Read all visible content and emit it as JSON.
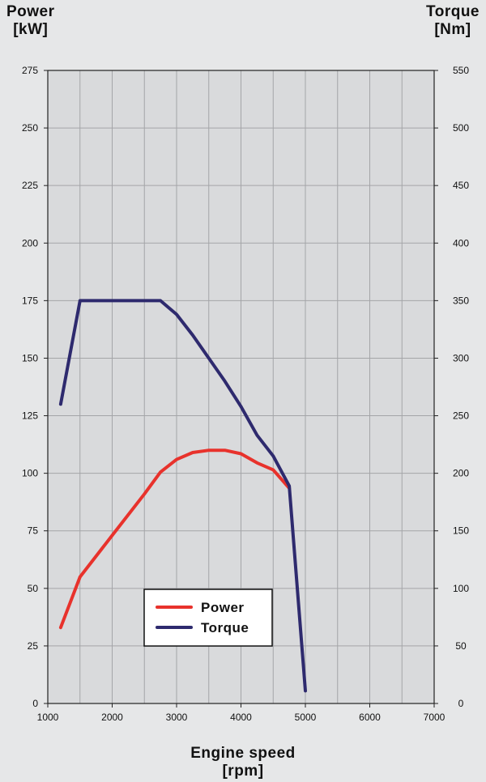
{
  "chart_data": {
    "type": "line",
    "left_axis": {
      "title_line1": "Power",
      "title_line2": "[kW]",
      "range": [
        0,
        275
      ],
      "ticks": [
        0,
        25,
        50,
        75,
        100,
        125,
        150,
        175,
        200,
        225,
        250,
        275
      ]
    },
    "right_axis": {
      "title_line1": "Torque",
      "title_line2": "[Nm]",
      "range": [
        0,
        550
      ],
      "ticks": [
        0,
        50,
        100,
        150,
        200,
        250,
        300,
        350,
        400,
        450,
        500,
        550
      ]
    },
    "x_axis": {
      "title_line1": "Engine speed",
      "title_line2": "[rpm]",
      "range": [
        1000,
        7000
      ],
      "ticks": [
        1000,
        2000,
        3000,
        4000,
        5000,
        6000,
        7000
      ]
    },
    "grid": true,
    "legend_position": "bottom-center",
    "series": [
      {
        "name": "Power",
        "axis": "left",
        "color": "#e8322c",
        "x": [
          1200,
          1500,
          2000,
          2500,
          2750,
          3000,
          3250,
          3500,
          3750,
          4000,
          4250,
          4500,
          4750
        ],
        "y": [
          33,
          55,
          73,
          91,
          100.5,
          106,
          109,
          110,
          110,
          108.5,
          104.5,
          101.5,
          93.5
        ]
      },
      {
        "name": "Torque",
        "axis": "right",
        "color": "#2e2a6e",
        "x": [
          1200,
          1500,
          2000,
          2500,
          2750,
          3000,
          3250,
          3500,
          3750,
          4000,
          4250,
          4500,
          4750,
          5000
        ],
        "y": [
          260,
          350,
          350,
          350,
          350,
          338,
          320,
          300,
          280,
          258,
          233,
          215,
          189,
          11
        ]
      }
    ]
  }
}
